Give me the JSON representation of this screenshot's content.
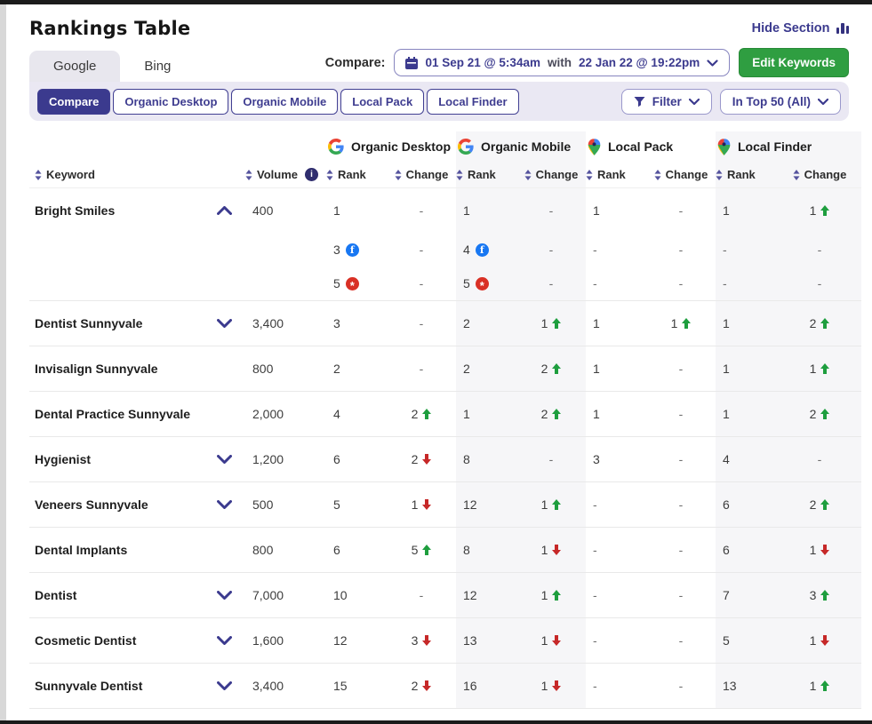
{
  "header": {
    "title": "Rankings Table",
    "hide_section_label": "Hide Section"
  },
  "tabs": [
    {
      "label": "Google",
      "active": true
    },
    {
      "label": "Bing",
      "active": false
    }
  ],
  "compare": {
    "label": "Compare:",
    "start_date": "01 Sep 21 @ 5:34am",
    "joiner": "with",
    "end_date": "22 Jan 22 @ 19:22pm"
  },
  "edit_keywords_label": "Edit Keywords",
  "view_buttons": [
    {
      "label": "Compare",
      "active": true
    },
    {
      "label": "Organic Desktop",
      "active": false
    },
    {
      "label": "Organic Mobile",
      "active": false
    },
    {
      "label": "Local Pack",
      "active": false
    },
    {
      "label": "Local Finder",
      "active": false
    }
  ],
  "filter_dropdown_label": "Filter",
  "top_dropdown_label": "In Top 50 (All)",
  "columns": {
    "keyword": "Keyword",
    "volume": "Volume",
    "rank": "Rank",
    "change": "Change",
    "groups": [
      {
        "label": "Organic Desktop",
        "icon": "google-g-icon"
      },
      {
        "label": "Organic Mobile",
        "icon": "google-g-icon"
      },
      {
        "label": "Local Pack",
        "icon": "maps-pin-icon"
      },
      {
        "label": "Local Finder",
        "icon": "maps-pin-icon"
      }
    ]
  },
  "colors": {
    "accent_indigo": "#3b3a8e",
    "button_green": "#2f9e41",
    "change_up_green": "#1e9e3e",
    "change_down_red": "#c62828",
    "band_gray": "#f6f6f8",
    "facebook_blue": "#1877F2",
    "yelp_red": "#d93025"
  },
  "rows": [
    {
      "keyword": "Bright Smiles",
      "expander": "up",
      "volume": "400",
      "main": {
        "od": {
          "rank": "1"
        },
        "odc": {
          "value": "-"
        },
        "om": {
          "rank": "1"
        },
        "omc": {
          "value": "-"
        },
        "lp": {
          "rank": "1"
        },
        "lpc": {
          "value": "-"
        },
        "lf": {
          "rank": "1"
        },
        "lfc": {
          "value": "1",
          "dir": "up"
        }
      },
      "subrows": [
        {
          "od": {
            "rank": "3",
            "icon": "facebook"
          },
          "odc": {
            "value": "-"
          },
          "om": {
            "rank": "4",
            "icon": "facebook"
          },
          "omc": {
            "value": "-"
          },
          "lp": {
            "rank": "-"
          },
          "lpc": {
            "value": "-"
          },
          "lf": {
            "rank": "-"
          },
          "lfc": {
            "value": "-"
          }
        },
        {
          "od": {
            "rank": "5",
            "icon": "yelp"
          },
          "odc": {
            "value": "-"
          },
          "om": {
            "rank": "5",
            "icon": "yelp"
          },
          "omc": {
            "value": "-"
          },
          "lp": {
            "rank": "-"
          },
          "lpc": {
            "value": "-"
          },
          "lf": {
            "rank": "-"
          },
          "lfc": {
            "value": "-"
          }
        }
      ]
    },
    {
      "keyword": "Dentist Sunnyvale",
      "expander": "down",
      "volume": "3,400",
      "main": {
        "od": {
          "rank": "3"
        },
        "odc": {
          "value": "-"
        },
        "om": {
          "rank": "2"
        },
        "omc": {
          "value": "1",
          "dir": "up"
        },
        "lp": {
          "rank": "1"
        },
        "lpc": {
          "value": "1",
          "dir": "up"
        },
        "lf": {
          "rank": "1"
        },
        "lfc": {
          "value": "2",
          "dir": "up"
        }
      },
      "subrows": []
    },
    {
      "keyword": "Invisalign Sunnyvale",
      "expander": null,
      "volume": "800",
      "main": {
        "od": {
          "rank": "2"
        },
        "odc": {
          "value": "-"
        },
        "om": {
          "rank": "2"
        },
        "omc": {
          "value": "2",
          "dir": "up"
        },
        "lp": {
          "rank": "1"
        },
        "lpc": {
          "value": "-"
        },
        "lf": {
          "rank": "1"
        },
        "lfc": {
          "value": "1",
          "dir": "up"
        }
      },
      "subrows": []
    },
    {
      "keyword": "Dental Practice Sunnyvale",
      "expander": null,
      "volume": "2,000",
      "main": {
        "od": {
          "rank": "4"
        },
        "odc": {
          "value": "2",
          "dir": "up"
        },
        "om": {
          "rank": "1"
        },
        "omc": {
          "value": "2",
          "dir": "up"
        },
        "lp": {
          "rank": "1"
        },
        "lpc": {
          "value": "-"
        },
        "lf": {
          "rank": "1"
        },
        "lfc": {
          "value": "2",
          "dir": "up"
        }
      },
      "subrows": []
    },
    {
      "keyword": "Hygienist",
      "expander": "down",
      "volume": "1,200",
      "main": {
        "od": {
          "rank": "6"
        },
        "odc": {
          "value": "2",
          "dir": "down"
        },
        "om": {
          "rank": "8"
        },
        "omc": {
          "value": "-"
        },
        "lp": {
          "rank": "3"
        },
        "lpc": {
          "value": "-"
        },
        "lf": {
          "rank": "4"
        },
        "lfc": {
          "value": "-"
        }
      },
      "subrows": []
    },
    {
      "keyword": "Veneers Sunnyvale",
      "expander": "down",
      "volume": "500",
      "main": {
        "od": {
          "rank": "5"
        },
        "odc": {
          "value": "1",
          "dir": "down"
        },
        "om": {
          "rank": "12"
        },
        "omc": {
          "value": "1",
          "dir": "up"
        },
        "lp": {
          "rank": "-"
        },
        "lpc": {
          "value": "-"
        },
        "lf": {
          "rank": "6"
        },
        "lfc": {
          "value": "2",
          "dir": "up"
        }
      },
      "subrows": []
    },
    {
      "keyword": "Dental Implants",
      "expander": null,
      "volume": "800",
      "main": {
        "od": {
          "rank": "6"
        },
        "odc": {
          "value": "5",
          "dir": "up"
        },
        "om": {
          "rank": "8"
        },
        "omc": {
          "value": "1",
          "dir": "down"
        },
        "lp": {
          "rank": "-"
        },
        "lpc": {
          "value": "-"
        },
        "lf": {
          "rank": "6"
        },
        "lfc": {
          "value": "1",
          "dir": "down"
        }
      },
      "subrows": []
    },
    {
      "keyword": "Dentist",
      "expander": "down",
      "volume": "7,000",
      "main": {
        "od": {
          "rank": "10"
        },
        "odc": {
          "value": "-"
        },
        "om": {
          "rank": "12"
        },
        "omc": {
          "value": "1",
          "dir": "up"
        },
        "lp": {
          "rank": "-"
        },
        "lpc": {
          "value": "-"
        },
        "lf": {
          "rank": "7"
        },
        "lfc": {
          "value": "3",
          "dir": "up"
        }
      },
      "subrows": []
    },
    {
      "keyword": "Cosmetic Dentist",
      "expander": "down",
      "volume": "1,600",
      "main": {
        "od": {
          "rank": "12"
        },
        "odc": {
          "value": "3",
          "dir": "down"
        },
        "om": {
          "rank": "13"
        },
        "omc": {
          "value": "1",
          "dir": "down"
        },
        "lp": {
          "rank": "-"
        },
        "lpc": {
          "value": "-"
        },
        "lf": {
          "rank": "5"
        },
        "lfc": {
          "value": "1",
          "dir": "down"
        }
      },
      "subrows": []
    },
    {
      "keyword": "Sunnyvale Dentist",
      "expander": "down",
      "volume": "3,400",
      "main": {
        "od": {
          "rank": "15"
        },
        "odc": {
          "value": "2",
          "dir": "down"
        },
        "om": {
          "rank": "16"
        },
        "omc": {
          "value": "1",
          "dir": "down"
        },
        "lp": {
          "rank": "-"
        },
        "lpc": {
          "value": "-"
        },
        "lf": {
          "rank": "13"
        },
        "lfc": {
          "value": "1",
          "dir": "up"
        }
      },
      "subrows": []
    }
  ]
}
